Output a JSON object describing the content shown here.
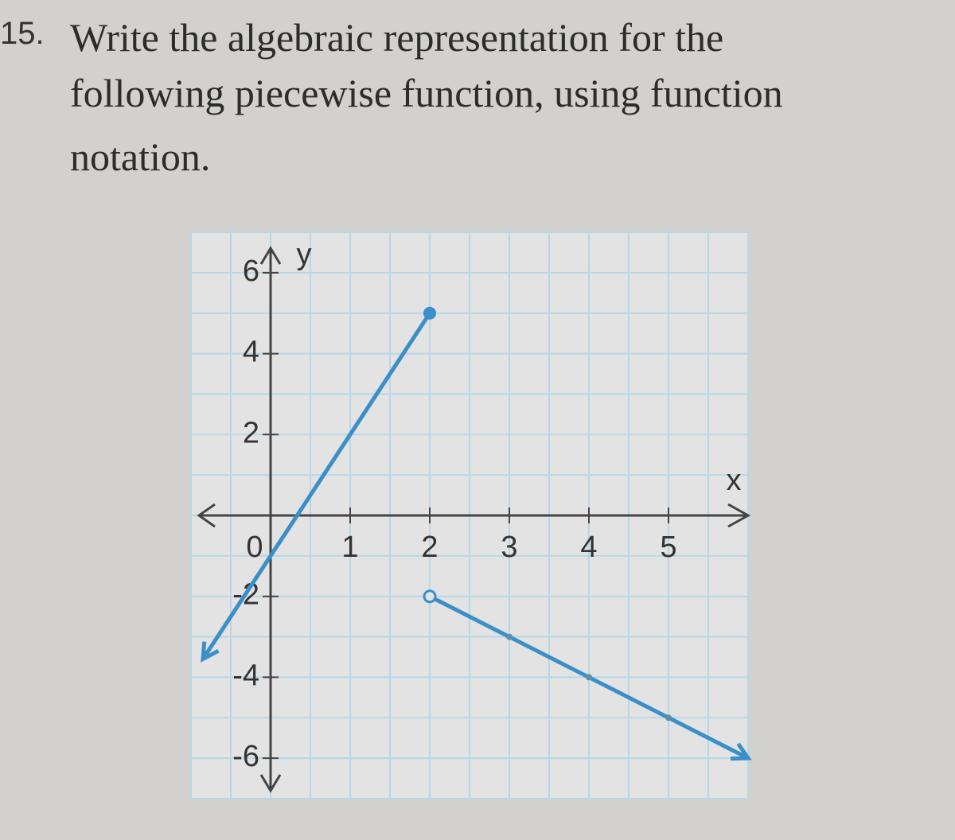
{
  "question": {
    "number": "15.",
    "lines": [
      "Write the algebraic representation for the",
      "following piecewise function, using function",
      "notation."
    ]
  },
  "chart_data": {
    "type": "line",
    "xlabel": "x",
    "ylabel": "y",
    "xlim": [
      -1,
      6
    ],
    "ylim": [
      -7,
      7
    ],
    "xticks": [
      0,
      1,
      2,
      3,
      4,
      5
    ],
    "yticks": [
      -6,
      -4,
      -2,
      2,
      4,
      6
    ],
    "grid": true,
    "series": [
      {
        "color": "#3a8fc8",
        "x": [
          -0.85,
          2
        ],
        "values": [
          -3.55,
          5
        ],
        "end_markers": [
          "arrow",
          "filled"
        ]
      },
      {
        "color": "#3a8fc8",
        "x": [
          2,
          3,
          4,
          5,
          6
        ],
        "values": [
          -2,
          -3,
          -4,
          -5,
          -6
        ],
        "end_markers": [
          "open",
          "arrow"
        ]
      }
    ]
  }
}
